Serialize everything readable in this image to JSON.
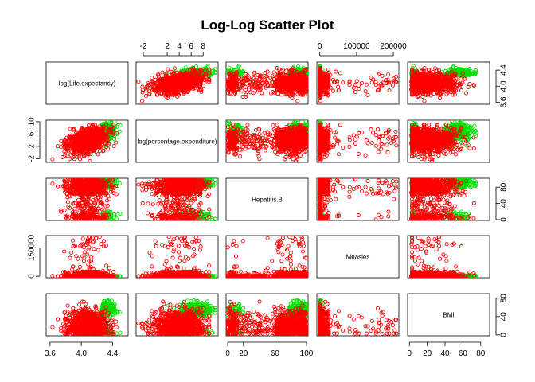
{
  "chart_data": {
    "type": "scatter-matrix",
    "title": "Log-Log Scatter Plot",
    "variables": [
      {
        "key": "lle",
        "label": "log(Life.expectancy)",
        "range": [
          3.55,
          4.6
        ],
        "ticks": [
          3.6,
          4.0,
          4.4
        ],
        "tick_labels": [
          "3.6",
          "4.0",
          "4.4"
        ]
      },
      {
        "key": "lpe",
        "label": "log(percentage.expenditure)",
        "range": [
          -3.2,
          10.5
        ],
        "ticks": [
          -2,
          2,
          4,
          6,
          8
        ],
        "tick_labels": [
          "-2",
          "2",
          "4",
          "6",
          "8"
        ],
        "ticks_left": [
          -2,
          2,
          6,
          10
        ],
        "tick_labels_left": [
          "-2",
          "2",
          "6",
          "10"
        ]
      },
      {
        "key": "hep",
        "label": "Hepatitis.B",
        "range": [
          -2,
          102
        ],
        "ticks": [
          0,
          20,
          60,
          100
        ],
        "tick_labels": [
          "0",
          "20",
          "60",
          "100"
        ],
        "ticks_right": [
          0,
          40,
          80
        ],
        "tick_labels_right": [
          "0",
          "40",
          "80"
        ]
      },
      {
        "key": "mea",
        "label": "Measles",
        "range": [
          -8000,
          215000
        ],
        "ticks": [
          0,
          100000,
          200000
        ],
        "tick_labels": [
          "0",
          "100000",
          "200000"
        ],
        "ticks_left": [
          0,
          150000
        ],
        "tick_labels_left": [
          "0",
          "150000"
        ]
      },
      {
        "key": "bmi",
        "label": "BMI",
        "range": [
          -2,
          90
        ],
        "ticks": [
          0,
          20,
          40,
          60,
          80
        ],
        "tick_labels": [
          "0",
          "20",
          "40",
          "60",
          "80"
        ],
        "ticks_right": [
          0,
          40,
          80
        ],
        "tick_labels_right": [
          "0",
          "40",
          "80"
        ]
      }
    ],
    "series": [
      {
        "color": "#00dd00",
        "count": 280
      },
      {
        "color": "#ff0000",
        "count": 900
      }
    ],
    "points": [],
    "grid": false,
    "legend": "none"
  }
}
